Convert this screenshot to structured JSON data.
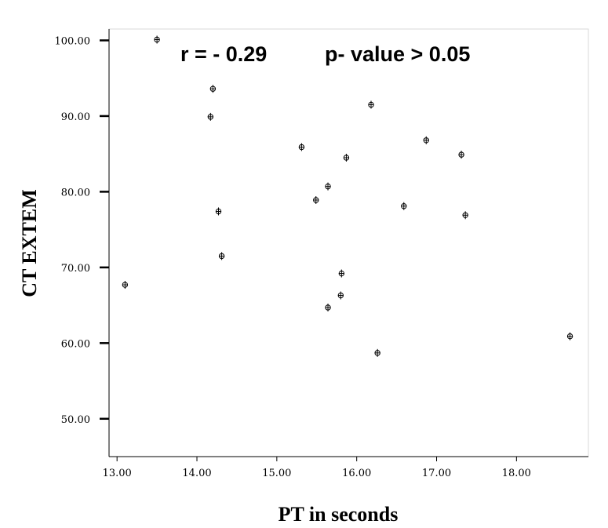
{
  "chart_data": {
    "type": "scatter",
    "xlabel": "PT in seconds",
    "ylabel": "CT EXTEM",
    "xlim": [
      12.9,
      18.9
    ],
    "ylim": [
      45,
      101.5
    ],
    "x_ticks": [
      13,
      14,
      15,
      16,
      17,
      18
    ],
    "x_tick_labels": [
      "13.00",
      "14.00",
      "15.00",
      "16.00",
      "17.00",
      "18.00"
    ],
    "y_ticks": [
      50,
      60,
      70,
      80,
      90,
      100
    ],
    "y_tick_labels": [
      "50.00",
      "60.00",
      "70.00",
      "80.00",
      "90.00",
      "100.00"
    ],
    "annotations": [
      "r = - 0.29",
      "p- value > 0.05"
    ],
    "grid": false,
    "points": [
      {
        "x": 13.1,
        "y": 67.7
      },
      {
        "x": 13.5,
        "y": 100.1
      },
      {
        "x": 14.17,
        "y": 89.9
      },
      {
        "x": 14.2,
        "y": 93.6
      },
      {
        "x": 14.27,
        "y": 77.4
      },
      {
        "x": 14.31,
        "y": 71.5
      },
      {
        "x": 15.31,
        "y": 85.9
      },
      {
        "x": 15.49,
        "y": 78.9
      },
      {
        "x": 15.64,
        "y": 80.7
      },
      {
        "x": 15.64,
        "y": 64.7
      },
      {
        "x": 15.8,
        "y": 66.3
      },
      {
        "x": 15.81,
        "y": 69.2
      },
      {
        "x": 15.87,
        "y": 84.5
      },
      {
        "x": 16.18,
        "y": 91.5
      },
      {
        "x": 16.26,
        "y": 58.7
      },
      {
        "x": 16.59,
        "y": 78.1
      },
      {
        "x": 16.87,
        "y": 86.8
      },
      {
        "x": 17.31,
        "y": 84.9
      },
      {
        "x": 17.36,
        "y": 76.9
      },
      {
        "x": 18.67,
        "y": 60.9
      }
    ]
  }
}
